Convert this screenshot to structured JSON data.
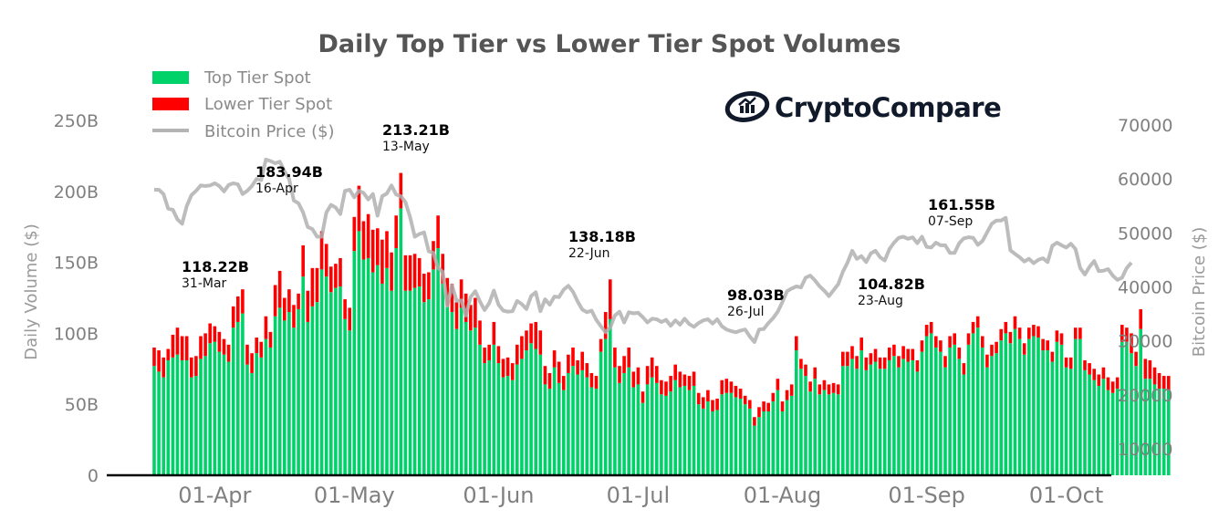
{
  "chart_data": {
    "type": "bar",
    "title": "Daily Top Tier vs Lower Tier Spot Volumes",
    "xlabel": "",
    "ylabel": "Daily Volume ($)",
    "y2label": "Bitcoin Price ($)",
    "ylim": [
      0,
      250
    ],
    "y2lim": [
      5000,
      72000
    ],
    "yticks": [
      {
        "v": 0,
        "label": "0"
      },
      {
        "v": 50,
        "label": "50B"
      },
      {
        "v": 100,
        "label": "100B"
      },
      {
        "v": 150,
        "label": "150B"
      },
      {
        "v": 200,
        "label": "200B"
      },
      {
        "v": 250,
        "label": "250B"
      }
    ],
    "y2ticks": [
      {
        "v": 10000,
        "label": "10000"
      },
      {
        "v": 20000,
        "label": "20000"
      },
      {
        "v": 30000,
        "label": "30000"
      },
      {
        "v": 40000,
        "label": "40000"
      },
      {
        "v": 50000,
        "label": "50000"
      },
      {
        "v": 60000,
        "label": "60000"
      },
      {
        "v": 70000,
        "label": "70000"
      }
    ],
    "start_date": "19-Mar",
    "xticks": [
      {
        "day": 13,
        "label": "01-Apr"
      },
      {
        "day": 43,
        "label": "01-May"
      },
      {
        "day": 74,
        "label": "01-Jun"
      },
      {
        "day": 104,
        "label": "01-Jul"
      },
      {
        "day": 135,
        "label": "01-Aug"
      },
      {
        "day": 166,
        "label": "01-Sep"
      },
      {
        "day": 196,
        "label": "01-Oct"
      }
    ],
    "legend": {
      "position": "top-left",
      "entries": [
        {
          "name": "Top Tier Spot",
          "color": "#00d26a",
          "kind": "bar"
        },
        {
          "name": "Lower Tier Spot",
          "color": "#ff0000",
          "kind": "bar"
        },
        {
          "name": "Bitcoin Price ($)",
          "color": "#b4b4b4",
          "kind": "line"
        }
      ]
    },
    "grid": false,
    "series": [
      {
        "name": "Top Tier Spot",
        "color": "#00d26a",
        "values": [
          77,
          73,
          69,
          81,
          83,
          85,
          81,
          81,
          69,
          70,
          82,
          84,
          93,
          94,
          87,
          85,
          80,
          104,
          108,
          114,
          78,
          72,
          86,
          83,
          96,
          90,
          112,
          118,
          109,
          115,
          104,
          117,
          140,
          108,
          119,
          122,
          145,
          140,
          129,
          132,
          133,
          110,
          102,
          158,
          172,
          152,
          153,
          143,
          148,
          135,
          146,
          130,
          160,
          188,
          130,
          130,
          132,
          133,
          122,
          124,
          145,
          160,
          135,
          119,
          115,
          103,
          118,
          108,
          102,
          104,
          92,
          79,
          81,
          92,
          79,
          69,
          70,
          67,
          78,
          82,
          88,
          93,
          89,
          85,
          64,
          61,
          76,
          65,
          60,
          72,
          77,
          71,
          74,
          69,
          62,
          61,
          87,
          96,
          110,
          76,
          65,
          72,
          76,
          62,
          64,
          51,
          64,
          69,
          65,
          57,
          56,
          59,
          67,
          62,
          63,
          60,
          63,
          50,
          47,
          52,
          45,
          46,
          57,
          58,
          58,
          55,
          54,
          50,
          47,
          35,
          41,
          45,
          45,
          52,
          60,
          45,
          53,
          56,
          88,
          75,
          70,
          59,
          68,
          57,
          60,
          57,
          58,
          57,
          77,
          77,
          82,
          75,
          88,
          74,
          78,
          80,
          75,
          75,
          81,
          84,
          76,
          82,
          80,
          81,
          73,
          87,
          98,
          100,
          90,
          87,
          76,
          90,
          92,
          82,
          71,
          92,
          100,
          104,
          90,
          76,
          84,
          86,
          95,
          100,
          93,
          103,
          96,
          85,
          96,
          98,
          97,
          88,
          88,
          80,
          94,
          92,
          76,
          75,
          96,
          96,
          74,
          71,
          67,
          63,
          68,
          60,
          58,
          61,
          94,
          94,
          86,
          77,
          103,
          68,
          68,
          64,
          61,
          61,
          60
        ],
        "_note": "values in billions (B)"
      },
      {
        "name": "Lower Tier Spot",
        "color": "#ff0000",
        "values": [
          13,
          15,
          14,
          8,
          16,
          19,
          17,
          17,
          14,
          14,
          16,
          16,
          14,
          11,
          14,
          11,
          12,
          15,
          18,
          17,
          14,
          14,
          11,
          11,
          16,
          11,
          22,
          26,
          16,
          16,
          16,
          11,
          22,
          22,
          27,
          24,
          27,
          23,
          18,
          17,
          20,
          14,
          16,
          24,
          32,
          27,
          31,
          30,
          26,
          31,
          26,
          27,
          23,
          25,
          25,
          25,
          24,
          20,
          20,
          19,
          20,
          23,
          21,
          20,
          20,
          19,
          20,
          20,
          18,
          21,
          17,
          11,
          11,
          16,
          12,
          13,
          13,
          12,
          14,
          16,
          14,
          14,
          19,
          17,
          13,
          11,
          12,
          15,
          10,
          13,
          13,
          10,
          13,
          10,
          10,
          9,
          9,
          19,
          28,
          14,
          12,
          12,
          14,
          11,
          12,
          8,
          13,
          14,
          12,
          10,
          10,
          11,
          11,
          11,
          8,
          10,
          10,
          8,
          8,
          8,
          8,
          8,
          10,
          10,
          8,
          8,
          7,
          6,
          6,
          6,
          7,
          7,
          6,
          6,
          8,
          7,
          7,
          8,
          10,
          7,
          8,
          7,
          8,
          7,
          7,
          7,
          7,
          7,
          10,
          10,
          9,
          9,
          9,
          9,
          8,
          9,
          8,
          8,
          9,
          8,
          8,
          9,
          9,
          8,
          8,
          8,
          8,
          8,
          8,
          8,
          8,
          8,
          8,
          8,
          8,
          8,
          8,
          8,
          8,
          9,
          8,
          8,
          8,
          8,
          8,
          9,
          8,
          8,
          8,
          8,
          8,
          8,
          7,
          7,
          8,
          8,
          7,
          8,
          8,
          8,
          7,
          8,
          8,
          8,
          8,
          9,
          8,
          8,
          12,
          10,
          14,
          10,
          14,
          14,
          13,
          12,
          11,
          9,
          10
        ]
      }
    ],
    "price": [
      58000,
      58000,
      57200,
      54500,
      54300,
      52500,
      51700,
      55000,
      57000,
      57800,
      58800,
      58700,
      58800,
      59200,
      58700,
      57700,
      58900,
      59200,
      59000,
      57200,
      57800,
      58700,
      60000,
      59800,
      63600,
      63300,
      62900,
      63200,
      61400,
      60000,
      56000,
      55500,
      53800,
      51100,
      50700,
      49300,
      49300,
      53800,
      55200,
      54700,
      53500,
      57800,
      58000,
      56600,
      57800,
      57400,
      56200,
      57200,
      53200,
      56800,
      57300,
      58800,
      57100,
      56800,
      55700,
      52900,
      49300,
      49800,
      50100,
      46600,
      46300,
      43500,
      42800,
      36500,
      40300,
      37400,
      37500,
      34700,
      38100,
      39200,
      37300,
      35700,
      37000,
      39300,
      36700,
      35600,
      35400,
      35500,
      37400,
      36800,
      35900,
      38300,
      39000,
      35500,
      37700,
      36700,
      38200,
      38100,
      39500,
      40200,
      39100,
      37300,
      35800,
      35300,
      35600,
      33900,
      32700,
      31600,
      32500,
      34700,
      35400,
      33400,
      35300,
      35100,
      35200,
      34400,
      33400,
      34100,
      34000,
      33500,
      33900,
      32800,
      33800,
      33000,
      34100,
      33100,
      32600,
      33300,
      33800,
      34000,
      33200,
      34000,
      32700,
      32100,
      31800,
      31600,
      31900,
      32100,
      30800,
      29800,
      32100,
      32200,
      33300,
      34200,
      35400,
      37200,
      39200,
      39700,
      40100,
      39900,
      41700,
      42100,
      41200,
      40100,
      39300,
      38300,
      39400,
      40500,
      42800,
      44500,
      46700,
      45200,
      45700,
      44600,
      46200,
      46700,
      45500,
      44900,
      47000,
      48200,
      49100,
      49300,
      48900,
      49200,
      48100,
      49300,
      47400,
      47300,
      48200,
      47700,
      47700,
      46300,
      46300,
      48100,
      49000,
      49200,
      49100,
      47800,
      48500,
      50100,
      51700,
      52300,
      52300,
      52800,
      46800,
      46100,
      45500,
      44700,
      45200,
      44400,
      45000,
      45300,
      44600,
      47600,
      48200,
      47700,
      47300,
      48000,
      47000,
      43500,
      42300,
      43700,
      44800,
      42900,
      43000,
      43300,
      42100,
      41300,
      41700,
      43500,
      44500
    ],
    "annotations": [
      {
        "value": "118.22B",
        "date": "31-Mar",
        "day": 12
      },
      {
        "value": "183.94B",
        "date": "16-Apr",
        "day": 28
      },
      {
        "value": "213.21B",
        "date": "13-May",
        "day": 55
      },
      {
        "value": "138.18B",
        "date": "22-Jun",
        "day": 95
      },
      {
        "value": "98.03B",
        "date": "26-Jul",
        "day": 129
      },
      {
        "value": "104.82B",
        "date": "23-Aug",
        "day": 157
      },
      {
        "value": "161.55B",
        "date": "07-Sep",
        "day": 172
      }
    ]
  },
  "branding": {
    "logo_text": "CryptoCompare"
  }
}
